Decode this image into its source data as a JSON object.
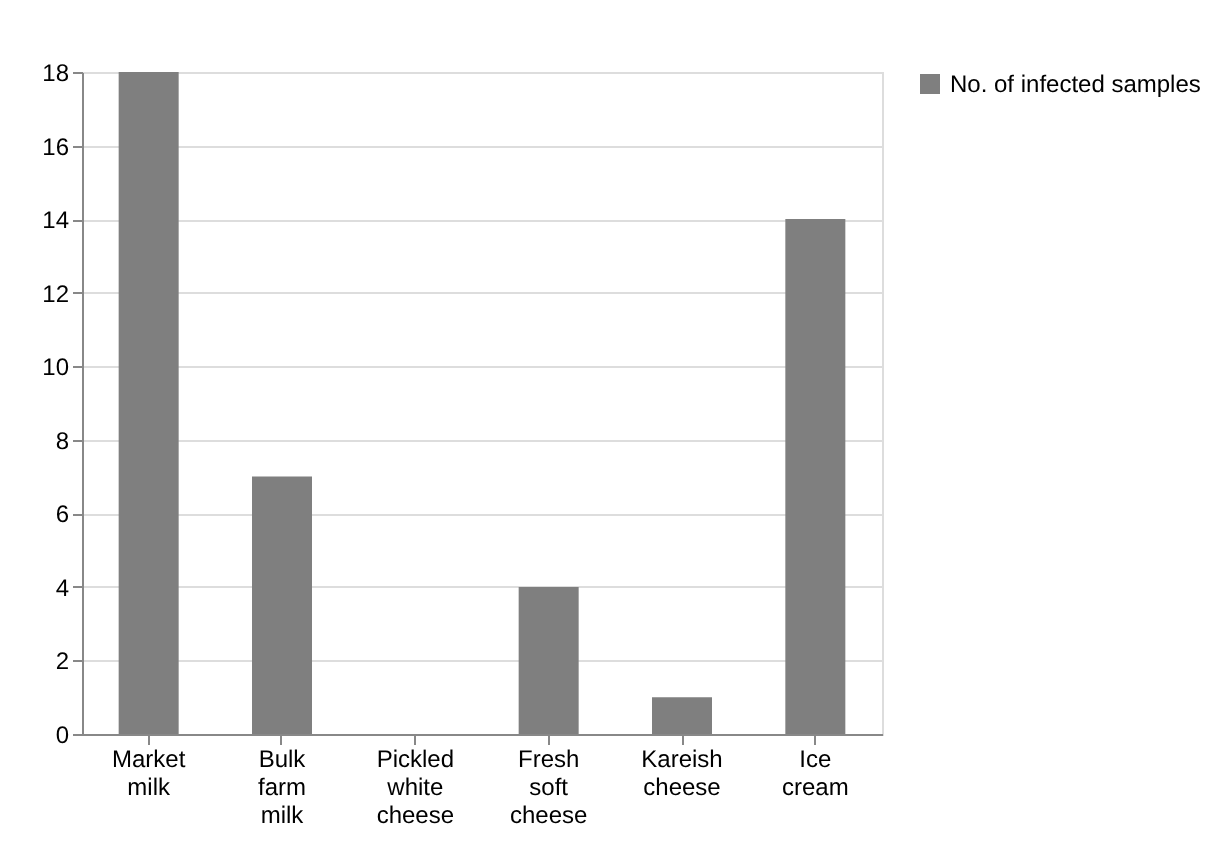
{
  "chart_data": {
    "type": "bar",
    "categories": [
      "Market milk",
      "Bulk farm milk",
      "Pickled white cheese",
      "Fresh soft cheese",
      "Kareish cheese",
      "Ice cream"
    ],
    "series": [
      {
        "name": "No. of infected samples",
        "color": "#7f7f7f",
        "values": [
          18,
          7,
          0,
          4,
          1,
          14
        ]
      }
    ],
    "ylim": [
      0,
      18
    ],
    "yticks": [
      0,
      2,
      4,
      6,
      8,
      10,
      12,
      14,
      16,
      18
    ],
    "grid": "y",
    "legend": "right"
  }
}
